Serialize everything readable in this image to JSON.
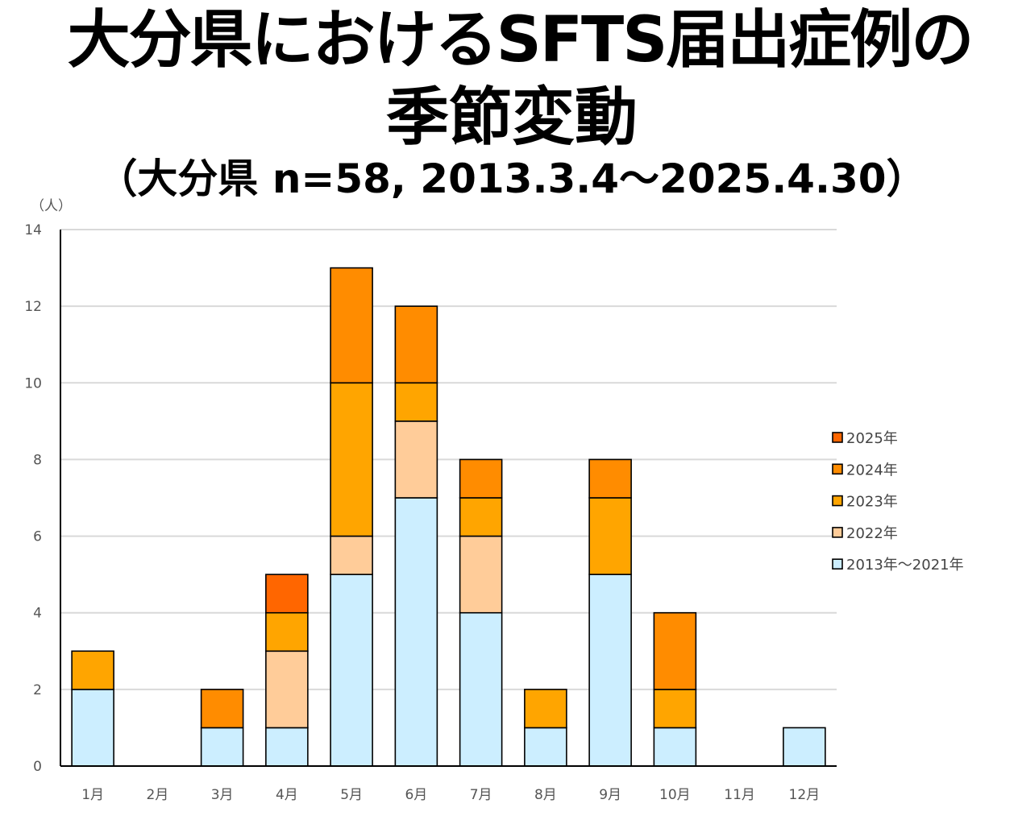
{
  "chart_data": {
    "type": "bar",
    "stacked": true,
    "title_line1": "大分県におけるSFTS届出症例の",
    "title_line2": "季節変動",
    "subtitle": "（大分県 n=58, 2013.3.4〜2025.4.30）",
    "ylabel": "（人）",
    "xlabel": "",
    "ylim": [
      0,
      14
    ],
    "yticks": [
      0,
      2,
      4,
      6,
      8,
      10,
      12,
      14
    ],
    "grid": true,
    "legend_position": "right",
    "categories": [
      "1月",
      "2月",
      "3月",
      "4月",
      "5月",
      "6月",
      "7月",
      "8月",
      "9月",
      "10月",
      "11月",
      "12月"
    ],
    "series": [
      {
        "name": "2013年〜2021年",
        "color": "#CCEEFF",
        "values": [
          2,
          0,
          1,
          1,
          5,
          7,
          4,
          1,
          5,
          1,
          0,
          1
        ]
      },
      {
        "name": "2022年",
        "color": "#FFCC99",
        "values": [
          0,
          0,
          0,
          2,
          1,
          2,
          2,
          0,
          0,
          0,
          0,
          0
        ]
      },
      {
        "name": "2023年",
        "color": "#FFA500",
        "values": [
          1,
          0,
          0,
          1,
          4,
          1,
          1,
          1,
          2,
          1,
          0,
          0
        ]
      },
      {
        "name": "2024年",
        "color": "#FF8C00",
        "values": [
          0,
          0,
          1,
          0,
          3,
          2,
          1,
          0,
          1,
          2,
          0,
          0
        ]
      },
      {
        "name": "2025年",
        "color": "#FF6600",
        "values": [
          0,
          0,
          0,
          1,
          0,
          0,
          0,
          0,
          0,
          0,
          0,
          0
        ]
      }
    ]
  }
}
